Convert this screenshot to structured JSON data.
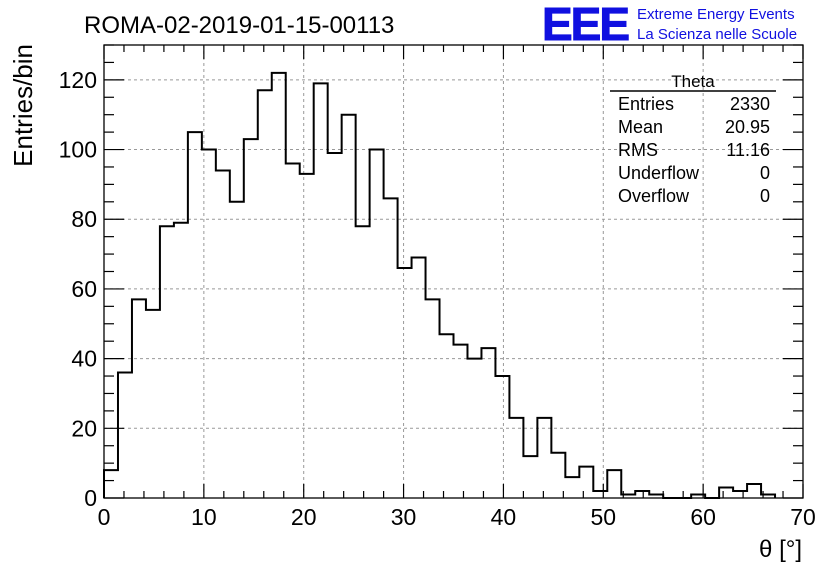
{
  "header": {
    "run_title": "ROMA-02-2019-01-15-00113",
    "logo_text": "EEE",
    "project_line1": "Extreme Energy Events",
    "project_line2": "La Scienza nelle Scuole",
    "brand_color": "#1010e0"
  },
  "stats_box": {
    "title": "Theta",
    "rows": [
      {
        "label": "Entries",
        "value": "2330"
      },
      {
        "label": "Mean",
        "value": "20.95"
      },
      {
        "label": "RMS",
        "value": "11.16"
      },
      {
        "label": "Underflow",
        "value": "0"
      },
      {
        "label": "Overflow",
        "value": "0"
      }
    ]
  },
  "chart_data": {
    "type": "histogram",
    "title": "ROMA-02-2019-01-15-00113",
    "xlabel": "θ [°]",
    "ylabel": "Entries/bin",
    "xlim": [
      0,
      70
    ],
    "ylim": [
      0,
      130
    ],
    "bin_width": 1.4,
    "x_ticks": [
      0,
      10,
      20,
      30,
      40,
      50,
      60,
      70
    ],
    "y_ticks": [
      0,
      20,
      40,
      60,
      80,
      100,
      120
    ],
    "grid": true,
    "values": [
      8,
      36,
      57,
      54,
      78,
      79,
      105,
      100,
      94,
      85,
      103,
      117,
      122,
      96,
      93,
      119,
      99,
      110,
      78,
      100,
      86,
      66,
      69,
      57,
      47,
      44,
      40,
      43,
      35,
      23,
      12,
      23,
      13,
      6,
      9,
      2,
      8,
      1,
      2,
      1,
      0,
      0,
      1,
      0,
      3,
      2,
      4,
      1,
      0,
      0
    ]
  }
}
